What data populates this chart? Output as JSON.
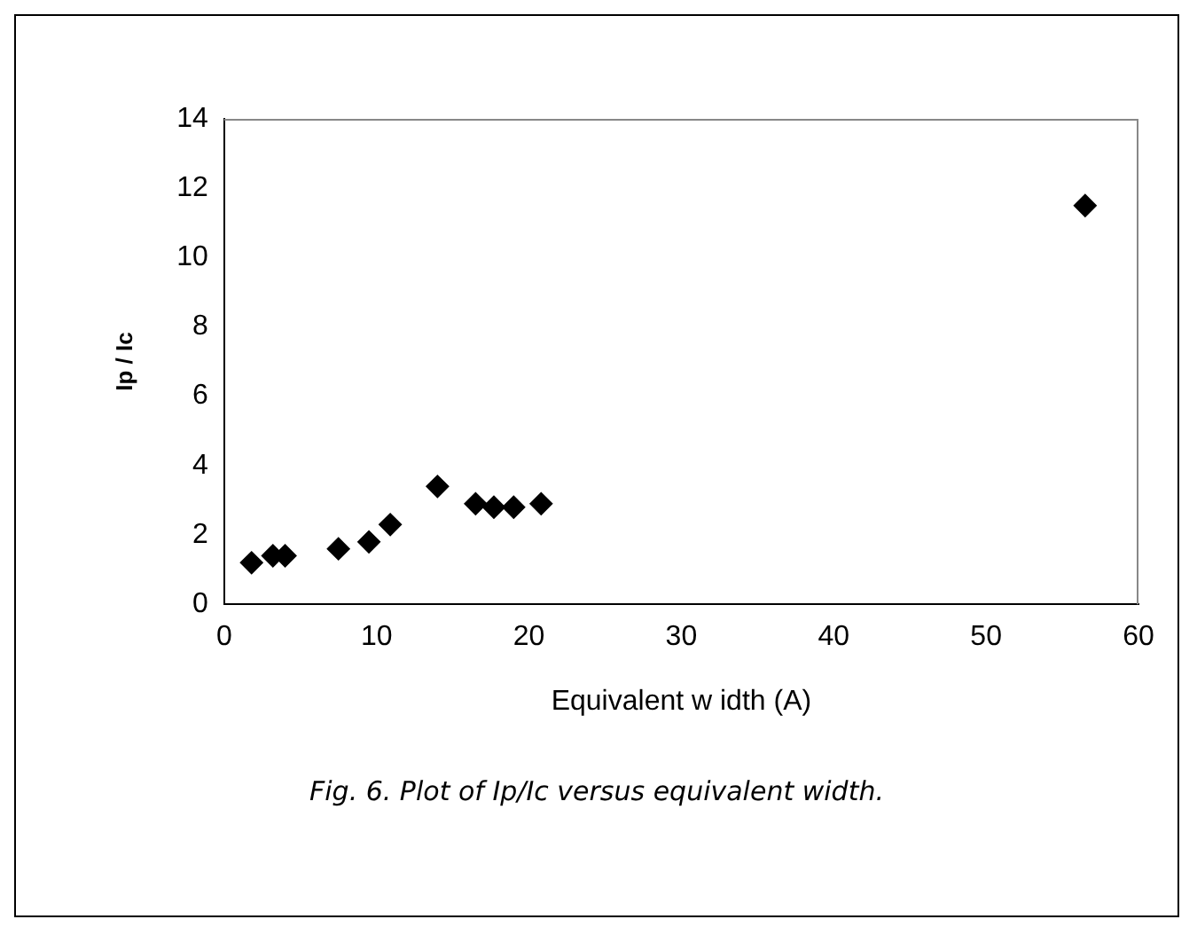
{
  "chart_data": {
    "type": "scatter",
    "xlabel": "Equivalent w idth (A)",
    "ylabel": "Ip / Ic",
    "annotations": [
      "Fig. 6. Plot of Ip/Ic versus equivalent width."
    ],
    "x": [
      1.8,
      3.2,
      4.0,
      7.5,
      9.5,
      10.9,
      14.0,
      16.5,
      17.7,
      19.0,
      20.8,
      56.5
    ],
    "series": [
      {
        "color": "#000000",
        "values": [
          1.2,
          1.4,
          1.4,
          1.6,
          1.8,
          2.3,
          3.4,
          2.9,
          2.8,
          2.8,
          2.9,
          11.5
        ]
      }
    ],
    "xlim": [
      0,
      60
    ],
    "xticks": [
      0,
      10,
      20,
      30,
      40,
      50,
      60
    ],
    "ylim": [
      0,
      14
    ],
    "yticks": [
      0,
      2,
      4,
      6,
      8,
      10,
      12,
      14
    ],
    "marker": "diamond",
    "grid": false,
    "legend": false
  }
}
